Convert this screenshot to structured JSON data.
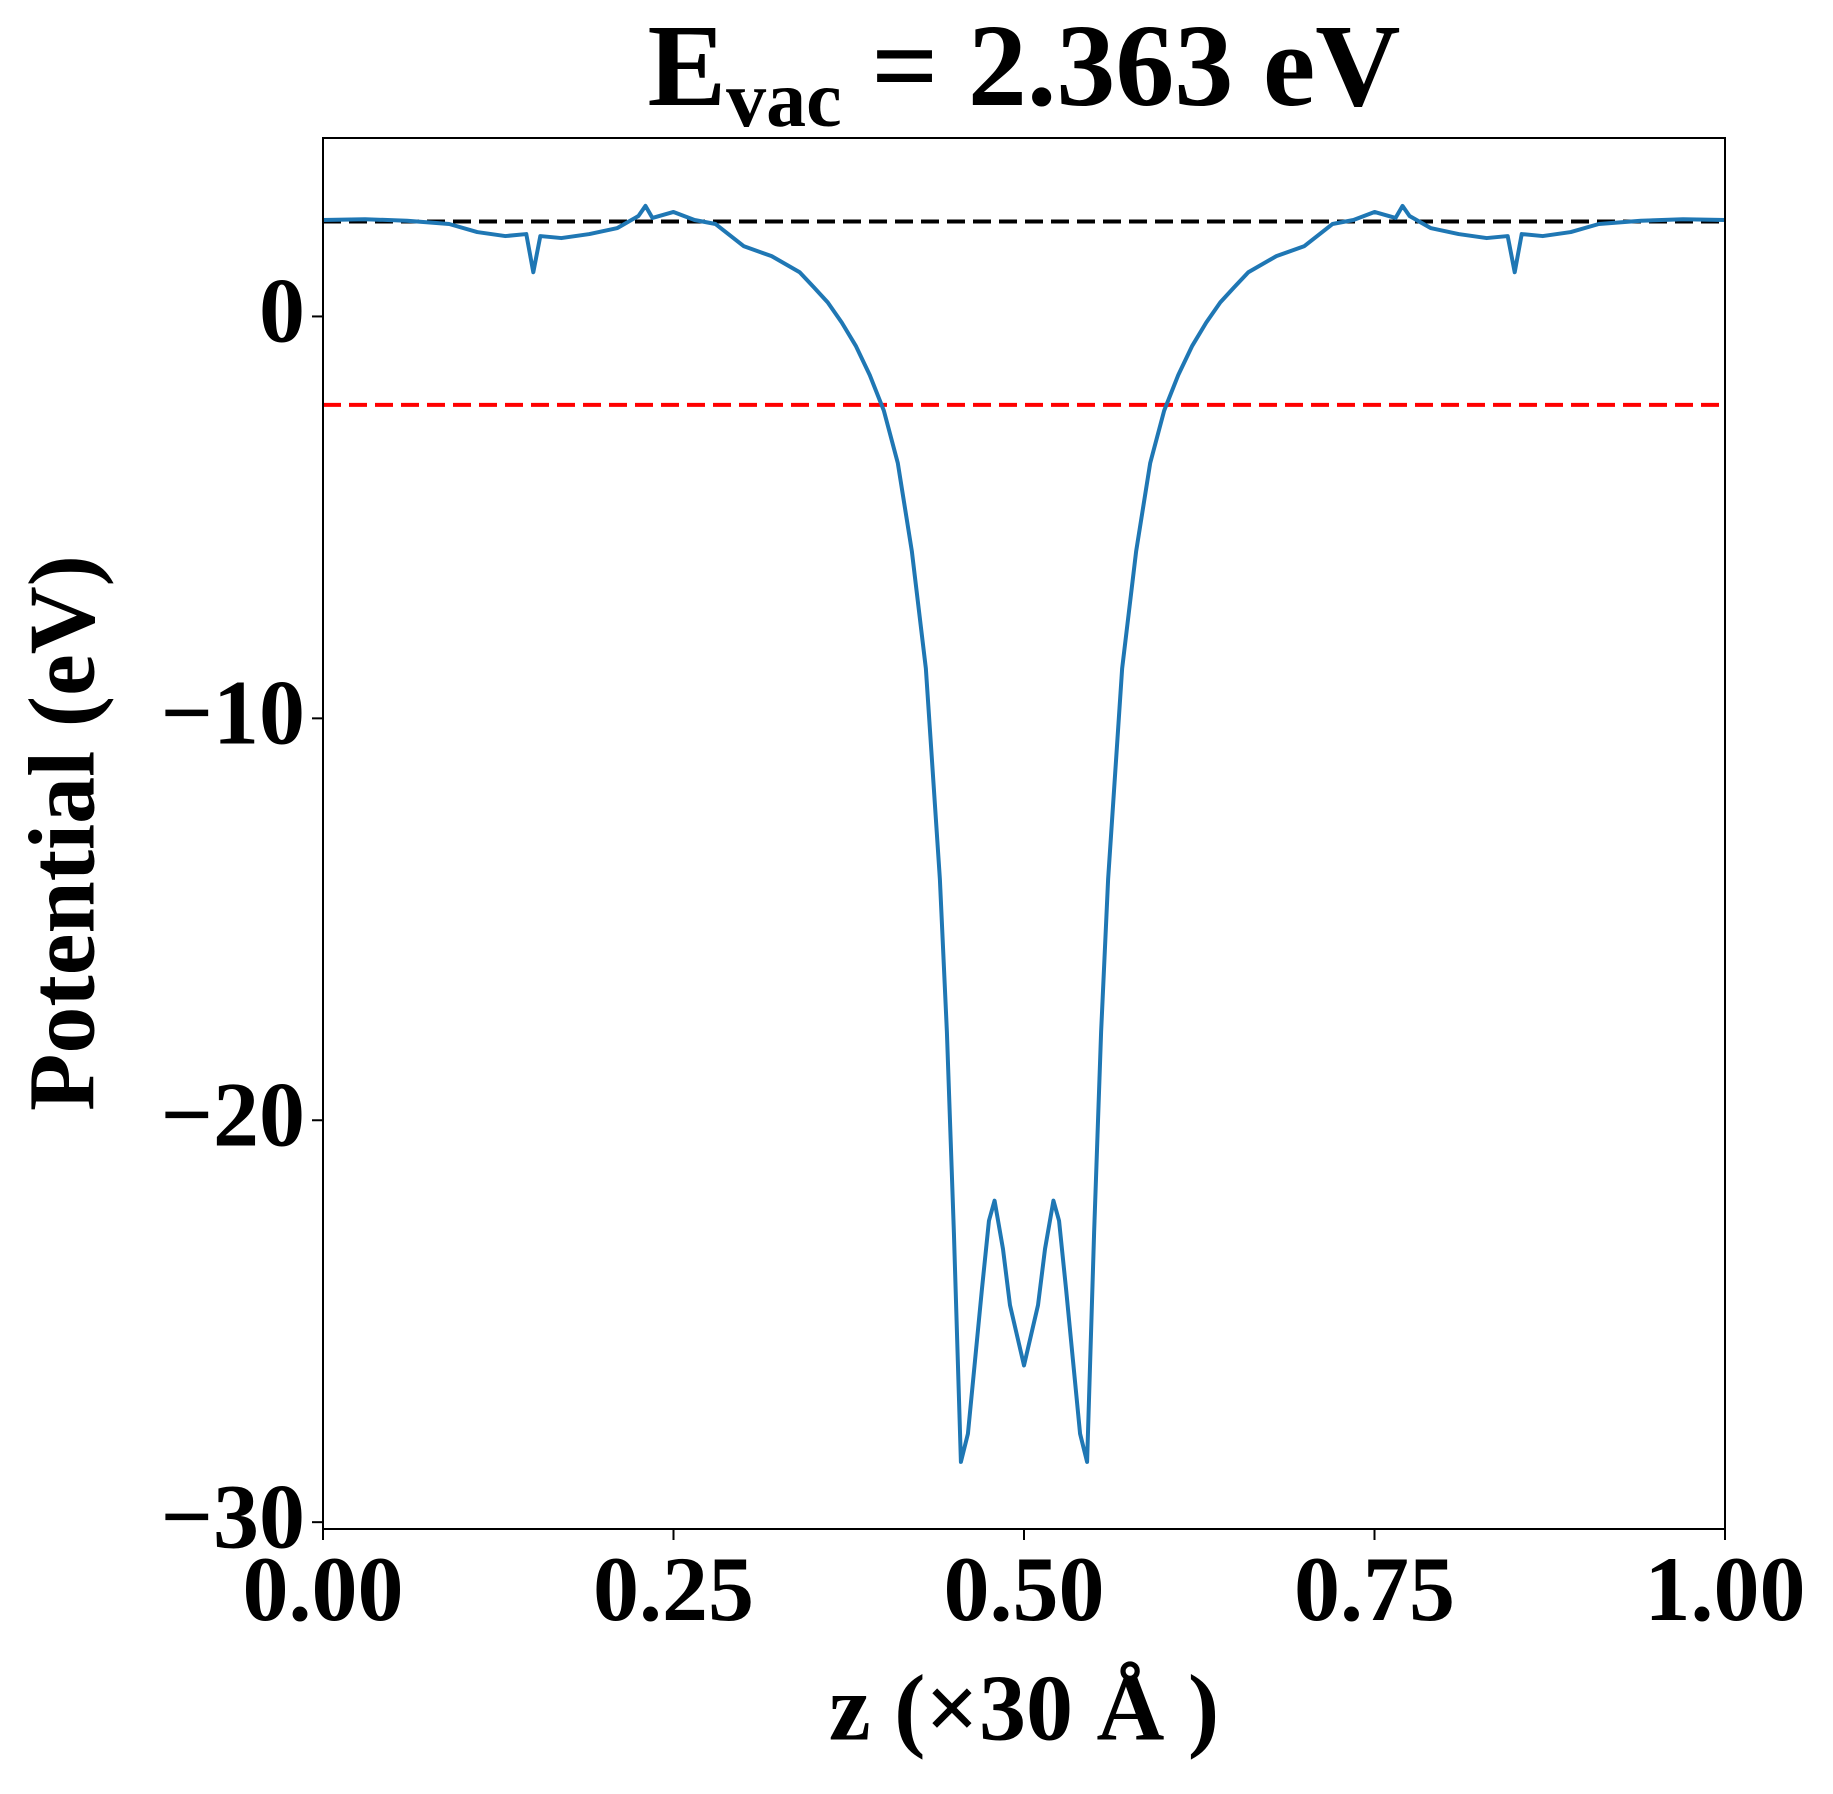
{
  "chart_data": {
    "type": "line",
    "title": {
      "text": "E",
      "subscript": "vac",
      "suffix": " = 2.363 eV"
    },
    "xlabel": "z (×30 Å )",
    "ylabel": "Potential (eV)",
    "x": [
      0,
      0.03,
      0.06,
      0.09,
      0.11,
      0.13,
      0.145,
      0.15,
      0.155,
      0.17,
      0.19,
      0.21,
      0.225,
      0.23,
      0.235,
      0.25,
      0.265,
      0.28,
      0.3,
      0.32,
      0.34,
      0.35,
      0.36,
      0.37,
      0.38,
      0.39,
      0.4,
      0.41,
      0.42,
      0.43,
      0.44,
      0.445,
      0.45,
      0.455,
      0.46,
      0.465,
      0.47,
      0.475,
      0.479,
      0.485,
      0.49,
      0.5,
      0.51,
      0.515,
      0.521,
      0.525,
      0.53,
      0.535,
      0.54,
      0.545,
      0.55,
      0.555,
      0.56,
      0.57,
      0.58,
      0.59,
      0.6,
      0.61,
      0.62,
      0.63,
      0.64,
      0.65,
      0.66,
      0.68,
      0.7,
      0.72,
      0.735,
      0.75,
      0.765,
      0.77,
      0.775,
      0.79,
      0.81,
      0.83,
      0.845,
      0.85,
      0.855,
      0.87,
      0.89,
      0.91,
      0.94,
      0.97,
      1.0
    ],
    "series": [
      {
        "color": "#1f77b4",
        "values": [
          2.4,
          2.42,
          2.38,
          2.3,
          2.1,
          2.0,
          2.05,
          1.1,
          2.0,
          1.95,
          2.05,
          2.2,
          2.5,
          2.75,
          2.45,
          2.6,
          2.4,
          2.3,
          1.75,
          1.5,
          1.1,
          0.73,
          0.35,
          -0.15,
          -0.73,
          -1.46,
          -2.34,
          -3.65,
          -5.84,
          -8.76,
          -14.0,
          -17.8,
          -22.8,
          -28.5,
          -27.8,
          -26.0,
          -24.2,
          -22.5,
          -22.0,
          -23.2,
          -24.6,
          -26.1,
          -24.6,
          -23.2,
          -22.0,
          -22.5,
          -24.2,
          -26.0,
          -27.8,
          -28.5,
          -22.8,
          -17.8,
          -14.0,
          -8.76,
          -5.84,
          -3.65,
          -2.34,
          -1.46,
          -0.73,
          -0.15,
          0.35,
          0.73,
          1.1,
          1.5,
          1.75,
          2.3,
          2.4,
          2.6,
          2.45,
          2.75,
          2.5,
          2.2,
          2.05,
          1.95,
          2.0,
          1.1,
          2.05,
          2.0,
          2.1,
          2.3,
          2.38,
          2.42,
          2.4
        ]
      }
    ],
    "reference_lines": [
      {
        "value": 2.363,
        "color": "#000000"
      },
      {
        "value": -2.2,
        "color": "#ff0000"
      }
    ],
    "xlim": [
      0,
      1
    ],
    "ylim": [
      -30.17,
      4.44
    ],
    "xticks": [
      {
        "value": 0,
        "label": "0.00"
      },
      {
        "value": 0.25,
        "label": "0.25"
      },
      {
        "value": 0.5,
        "label": "0.50"
      },
      {
        "value": 0.75,
        "label": "0.75"
      },
      {
        "value": 1,
        "label": "1.00"
      }
    ],
    "yticks": [
      {
        "value": -30,
        "label": "−30"
      },
      {
        "value": -20,
        "label": "−20"
      },
      {
        "value": -10,
        "label": "−10"
      },
      0
    ]
  }
}
